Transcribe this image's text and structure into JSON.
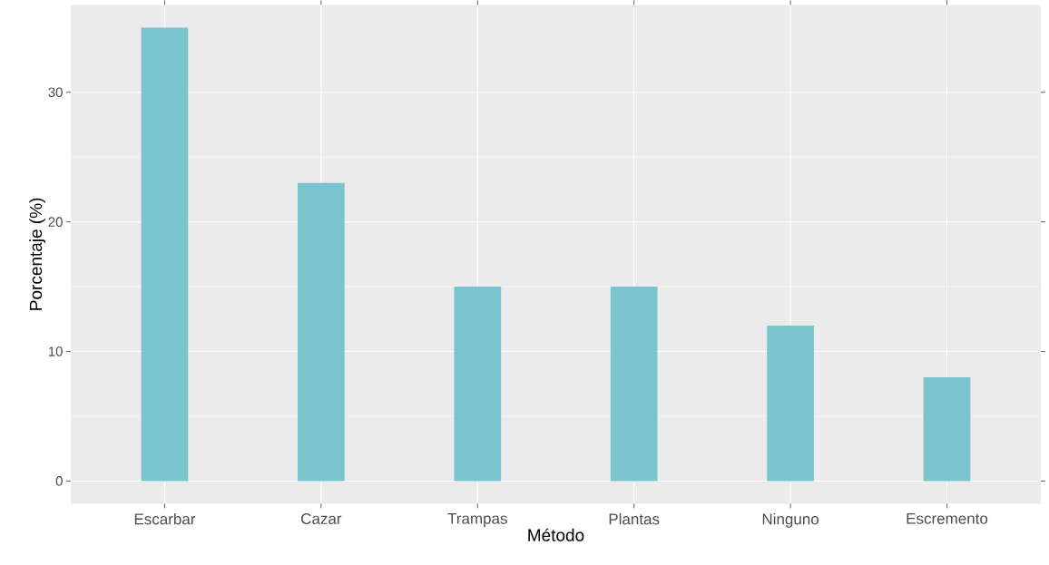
{
  "chart_data": {
    "type": "bar",
    "xlabel": "Método",
    "ylabel": "Porcentaje (%)",
    "categories": [
      "Escarbar",
      "Cazar",
      "Trampas",
      "Plantas",
      "Ninguno",
      "Escremento"
    ],
    "values": [
      35,
      23,
      15,
      15,
      12,
      8
    ],
    "color": "#7ac5cd",
    "ylim": [
      -1.75,
      36.75
    ],
    "yticks": [
      0,
      10,
      20,
      30
    ],
    "grid": true
  }
}
